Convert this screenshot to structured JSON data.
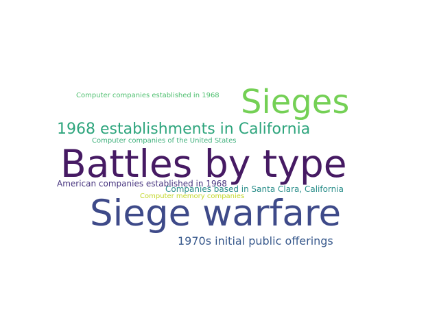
{
  "word_cloud": {
    "words": [
      {
        "text": "Computer companies established in 1968",
        "color": "#4dbf6e"
      },
      {
        "text": "Sieges",
        "color": "#74d055"
      },
      {
        "text": "1968 establishments in California",
        "color": "#2ea57d"
      },
      {
        "text": "Computer companies of the United States",
        "color": "#3fb07c"
      },
      {
        "text": "Battles by type",
        "color": "#461a63"
      },
      {
        "text": "American companies established in 1968",
        "color": "#46337e"
      },
      {
        "text": "Companies based in Santa Clara, California",
        "color": "#2a8e8a"
      },
      {
        "text": "Computer memory companies",
        "color": "#c2d72a"
      },
      {
        "text": "Siege warfare",
        "color": "#3e4a89"
      },
      {
        "text": "1970s initial public offerings",
        "color": "#38598c"
      }
    ]
  }
}
